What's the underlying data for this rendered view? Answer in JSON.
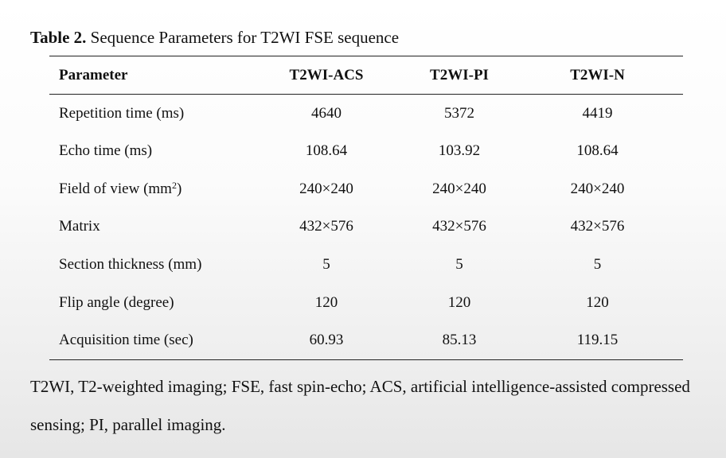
{
  "caption": {
    "label": "Table 2.",
    "text": "Sequence Parameters for T2WI FSE sequence"
  },
  "table": {
    "headers": [
      "Parameter",
      "T2WI-ACS",
      "T2WI-PI",
      "T2WI-N"
    ],
    "rows": [
      {
        "parameter": "Repetition time (ms)",
        "acs": "4640",
        "pi": "5372",
        "n": "4419"
      },
      {
        "parameter": "Echo time (ms)",
        "acs": "108.64",
        "pi": "103.92",
        "n": "108.64"
      },
      {
        "parameter": "Field of view (mm",
        "parameter_sup": "2",
        "parameter_suffix": ")",
        "acs": "240×240",
        "pi": "240×240",
        "n": "240×240"
      },
      {
        "parameter": "Matrix",
        "acs": "432×576",
        "pi": "432×576",
        "n": "432×576"
      },
      {
        "parameter": "Section thickness (mm)",
        "acs": "5",
        "pi": "5",
        "n": "5"
      },
      {
        "parameter": "Flip angle (degree)",
        "acs": "120",
        "pi": "120",
        "n": "120"
      },
      {
        "parameter": "Acquisition time (sec)",
        "acs": "60.93",
        "pi": "85.13",
        "n": "119.15"
      }
    ]
  },
  "footnote": "T2WI, T2-weighted imaging; FSE, fast spin-echo; ACS, artificial intelligence-assisted compressed sensing; PI, parallel imaging."
}
